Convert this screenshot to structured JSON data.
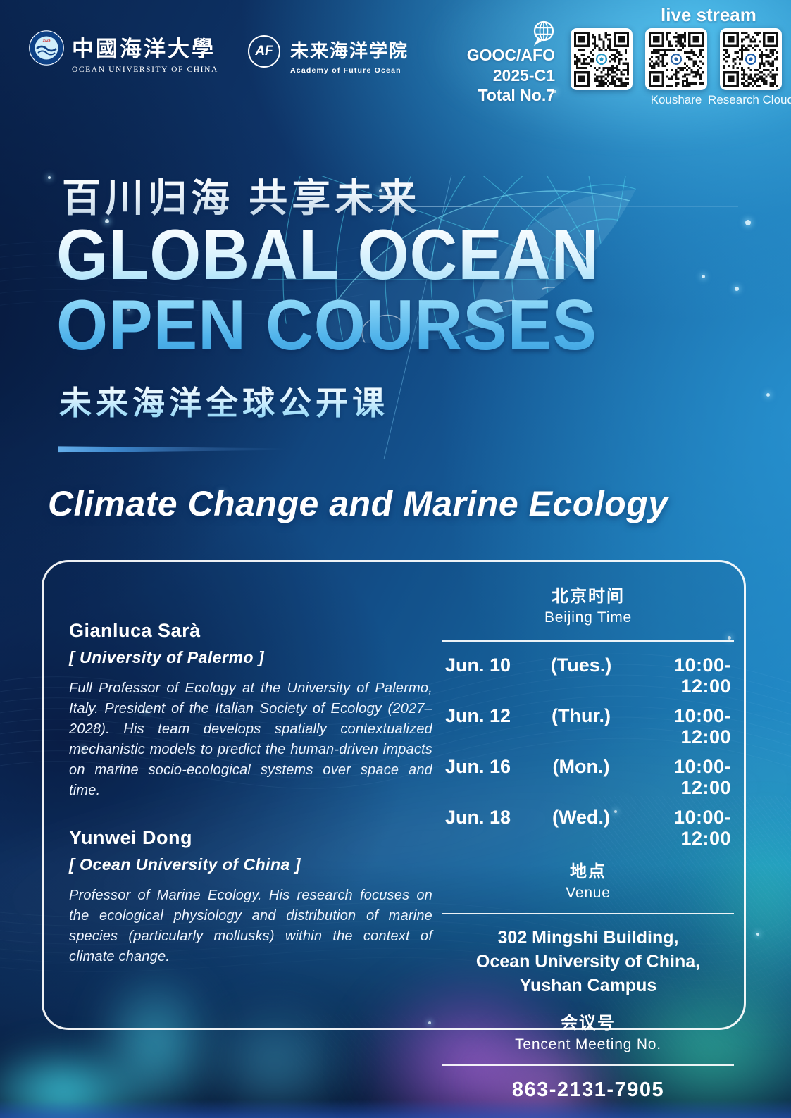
{
  "header": {
    "ouc": {
      "cn": "中國海洋大學",
      "en": "OCEAN UNIVERSITY OF CHINA"
    },
    "afo": {
      "abbr": "AF",
      "cn": "未来海洋学院",
      "en": "Academy of Future Ocean"
    },
    "series": {
      "line1": "GOOC/AFO",
      "line2": "2025-C1",
      "line3": "Total No.7"
    },
    "live_stream_label": "live stream",
    "qr_labels": [
      "Koushare",
      "Research Cloud"
    ]
  },
  "title": {
    "cn_slogan": "百川归海 共享未来",
    "en_line1": "GLOBAL OCEAN",
    "en_line2": "OPEN COURSES",
    "cn_subtitle": "未来海洋全球公开课",
    "course_title": "Climate Change and Marine Ecology"
  },
  "speakers": [
    {
      "name": "Gianluca Sarà",
      "affiliation": "[ University of Palermo ]",
      "bio": "Full Professor of Ecology at the University of Palermo, Italy. President of the Italian Society of Ecology (2027–2028). His team develops spatially contextualized mechanistic models to predict the human-driven impacts on marine socio-ecological systems over space and time."
    },
    {
      "name": "Yunwei Dong",
      "affiliation": "[ Ocean University of China ]",
      "bio": "Professor of Marine Ecology. His research focuses on the ecological physiology and distribution of marine species (particularly mollusks) within the context of climate change."
    }
  ],
  "schedule": {
    "heading_cn": "北京时间",
    "heading_en": "Beijing Time",
    "sessions": [
      {
        "date": "Jun. 10",
        "day": "(Tues.)",
        "time": "10:00-12:00"
      },
      {
        "date": "Jun. 12",
        "day": "(Thur.)",
        "time": "10:00-12:00"
      },
      {
        "date": "Jun. 16",
        "day": "(Mon.)",
        "time": "10:00-12:00"
      },
      {
        "date": "Jun. 18",
        "day": "(Wed.)",
        "time": "10:00-12:00"
      }
    ]
  },
  "venue": {
    "heading_cn": "地点",
    "heading_en": "Venue",
    "address_lines": [
      "302 Mingshi Building,",
      "Ocean University of China,",
      "Yushan Campus"
    ]
  },
  "meeting": {
    "heading_cn": "会议号",
    "heading_en": "Tencent Meeting No.",
    "number": "863-2131-7905"
  },
  "icons": {
    "globe_chat_icon": "globe inside speech bubble",
    "qr_code_afo": "qr-code with AFO logo center",
    "qr_code_koushare": "qr-code with Koushare logo center",
    "qr_code_research_cloud": "qr-code with cloud logo center",
    "ouc_seal": "university round seal with wave and 1924",
    "afo_badge": "AF circle badge"
  },
  "colors": {
    "deep_navy": "#0a2550",
    "bright_blue": "#2196d3",
    "graticule_cyan": "#4fd8f2",
    "title_gradient_top": "#f6fcff",
    "title_gradient_bottom": "#3aa0df",
    "aurora_purple": "#be69e8",
    "aurora_teal": "#3ee8b6",
    "aurora_cyan": "#50e6f8",
    "card_border": "#ffffff"
  }
}
